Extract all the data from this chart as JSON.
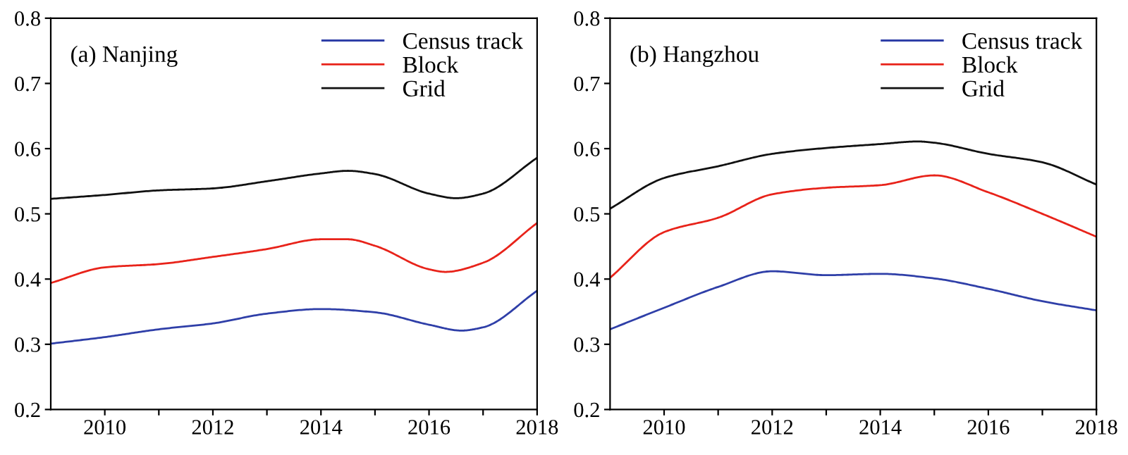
{
  "chart_data": [
    {
      "type": "line",
      "title": "(a) Nanjing",
      "xlim": [
        2009,
        2018
      ],
      "ylim": [
        0.2,
        0.8
      ],
      "xticks": [
        {
          "value": 2010,
          "label": "2010"
        },
        {
          "value": 2011,
          "label": null
        },
        {
          "value": 2012,
          "label": "2012"
        },
        {
          "value": 2013,
          "label": null
        },
        {
          "value": 2014,
          "label": "2014"
        },
        {
          "value": 2015,
          "label": null
        },
        {
          "value": 2016,
          "label": "2016"
        },
        {
          "value": 2017,
          "label": null
        },
        {
          "value": 2018,
          "label": "2018"
        }
      ],
      "yticks": [
        0.2,
        0.3,
        0.4,
        0.5,
        0.6,
        0.7,
        0.8
      ],
      "legend": "top right",
      "grid": false,
      "marker": "none",
      "line_style": "solid",
      "series": [
        {
          "name": "Census track",
          "color": "#2f3fa8",
          "x": [
            2009,
            2010,
            2011,
            2012,
            2013,
            2014,
            2015,
            2016,
            2016.6,
            2017,
            2018
          ],
          "values": [
            0.301,
            0.311,
            0.323,
            0.332,
            0.347,
            0.354,
            0.349,
            0.33,
            0.321,
            0.326,
            0.382
          ]
        },
        {
          "name": "Block",
          "color": "#e8231a",
          "x": [
            2009,
            2010,
            2011,
            2012,
            2013,
            2014,
            2014.5,
            2015,
            2016,
            2016.3,
            2017,
            2018
          ],
          "values": [
            0.394,
            0.418,
            0.423,
            0.434,
            0.446,
            0.461,
            0.461,
            0.451,
            0.415,
            0.411,
            0.425,
            0.486
          ]
        },
        {
          "name": "Grid",
          "color": "#111111",
          "x": [
            2009,
            2010,
            2011,
            2012,
            2013,
            2014,
            2014.5,
            2015,
            2016,
            2016.5,
            2017,
            2018
          ],
          "values": [
            0.523,
            0.529,
            0.536,
            0.539,
            0.55,
            0.562,
            0.566,
            0.561,
            0.531,
            0.524,
            0.531,
            0.586
          ]
        }
      ]
    },
    {
      "type": "line",
      "title": "(b) Hangzhou",
      "xlim": [
        2009,
        2018
      ],
      "ylim": [
        0.2,
        0.8
      ],
      "xticks": [
        {
          "value": 2010,
          "label": "2010"
        },
        {
          "value": 2011,
          "label": null
        },
        {
          "value": 2012,
          "label": "2012"
        },
        {
          "value": 2013,
          "label": null
        },
        {
          "value": 2014,
          "label": "2014"
        },
        {
          "value": 2015,
          "label": null
        },
        {
          "value": 2016,
          "label": "2016"
        },
        {
          "value": 2017,
          "label": null
        },
        {
          "value": 2018,
          "label": "2018"
        }
      ],
      "yticks": [
        0.2,
        0.3,
        0.4,
        0.5,
        0.6,
        0.7,
        0.8
      ],
      "legend": "top right",
      "grid": false,
      "marker": "none",
      "line_style": "solid",
      "series": [
        {
          "name": "Census track",
          "color": "#2f3fa8",
          "x": [
            2009,
            2010,
            2011,
            2012,
            2013,
            2014,
            2015,
            2016,
            2017,
            2018
          ],
          "values": [
            0.323,
            0.356,
            0.388,
            0.412,
            0.406,
            0.408,
            0.401,
            0.385,
            0.366,
            0.352
          ]
        },
        {
          "name": "Block",
          "color": "#e8231a",
          "x": [
            2009,
            2010,
            2011,
            2012,
            2013,
            2014,
            2015,
            2016,
            2017,
            2018
          ],
          "values": [
            0.402,
            0.472,
            0.494,
            0.53,
            0.54,
            0.544,
            0.559,
            0.533,
            0.5,
            0.465
          ]
        },
        {
          "name": "Grid",
          "color": "#111111",
          "x": [
            2009,
            2010,
            2011,
            2012,
            2013,
            2014,
            2014.7,
            2015,
            2016,
            2017,
            2018
          ],
          "values": [
            0.508,
            0.555,
            0.573,
            0.592,
            0.601,
            0.607,
            0.611,
            0.609,
            0.592,
            0.579,
            0.545
          ]
        }
      ]
    }
  ]
}
